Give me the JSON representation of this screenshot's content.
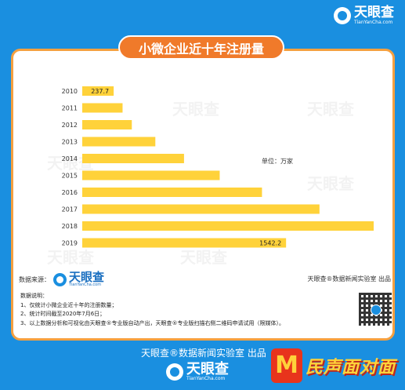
{
  "brand": {
    "name": "天眼查",
    "url": "TianYanCha.com"
  },
  "title": "小微企业近十年注册量",
  "unit_label": "单位：万家",
  "watermark": "天眼查",
  "source": {
    "label": "数据来源：",
    "logo_name": "天眼查",
    "logo_url": "TianYanCha.com"
  },
  "producer": "天眼查®数据新闻实验室 出品",
  "notes": {
    "heading": "数据说明：",
    "items": [
      "1、仅统计小微企业近十年的注册数量；",
      "2、统计时间截至2020年7月6日；",
      "3、以上数据分析和可视化由天眼查®专业版自动产出，天眼查®专业版扫描右侧二维码申请试用（限媒体）。"
    ]
  },
  "footer": {
    "credit": "天眼查®数据新闻实验室 出品",
    "logo_name": "天眼查",
    "logo_url": "TianYanCha.com",
    "partner": "民声面对面",
    "partner_mark": "M"
  },
  "colors": {
    "background": "#1a8fe0",
    "bar": "#ffd23a",
    "accent": "#f07a2a",
    "border": "#f5a040"
  },
  "chart_data": {
    "type": "bar",
    "orientation": "horizontal",
    "title": "小微企业近十年注册量",
    "unit": "单位：万家",
    "categories": [
      "2010",
      "2011",
      "2012",
      "2013",
      "2014",
      "2015",
      "2016",
      "2017",
      "2018",
      "2019"
    ],
    "values": [
      237.7,
      305,
      375,
      553,
      770,
      1040,
      1360,
      1795,
      2205,
      1542.2
    ],
    "data_labels": {
      "2010": "237.7",
      "2019": "1542.2"
    },
    "grid": false,
    "legend": "none"
  }
}
